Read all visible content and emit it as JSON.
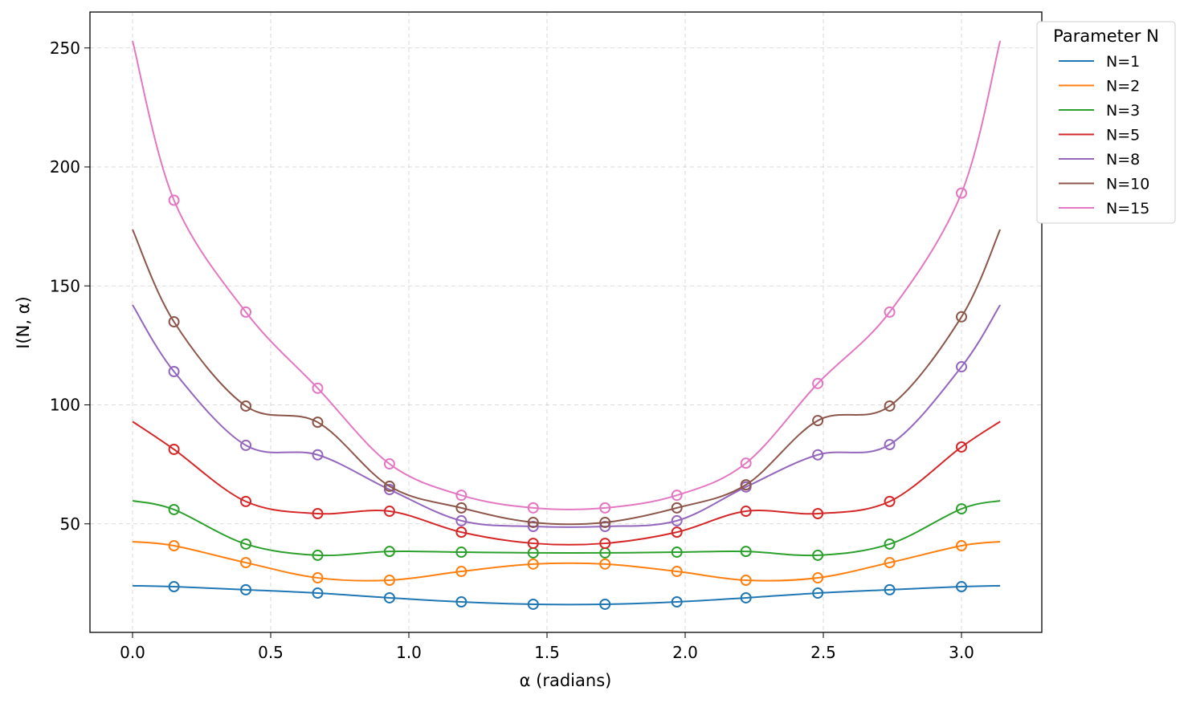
{
  "chart_data": {
    "type": "line",
    "title": "",
    "xlabel": "α (radians)",
    "ylabel": "I(N, α)",
    "xlim": [
      -0.157,
      3.299
    ],
    "ylim": [
      5,
      266
    ],
    "xticks": [
      0.0,
      0.5,
      1.0,
      1.5,
      2.0,
      2.5,
      3.0
    ],
    "xtick_labels": [
      "0.0",
      "0.5",
      "1.0",
      "1.5",
      "2.0",
      "2.5",
      "3.0"
    ],
    "yticks": [
      50,
      100,
      150,
      200,
      250
    ],
    "ytick_labels": [
      "50",
      "100",
      "150",
      "200",
      "250"
    ],
    "grid": true,
    "legend": {
      "title": "Parameter N",
      "placement": "outside-top-right"
    },
    "x": [
      0.0,
      0.15,
      0.41,
      0.67,
      0.93,
      1.19,
      1.45,
      1.71,
      1.97,
      2.22,
      2.48,
      2.74,
      3.0,
      3.14
    ],
    "marker_style": "hollow circle at interior points",
    "series": [
      {
        "name": "N=1",
        "color": "#1f77b4",
        "values": [
          24,
          23.6,
          22.3,
          20.9,
          18.9,
          17.2,
          16.2,
          16.2,
          17.2,
          18.9,
          20.9,
          22.3,
          23.6,
          24
        ]
      },
      {
        "name": "N=2",
        "color": "#ff7f0e",
        "values": [
          42.5,
          40.8,
          33.7,
          27.3,
          26.3,
          30.0,
          33.1,
          33.1,
          30.0,
          26.3,
          27.3,
          33.7,
          40.8,
          42.5
        ]
      },
      {
        "name": "N=3",
        "color": "#2ca02c",
        "values": [
          59.7,
          56.0,
          41.5,
          36.8,
          38.4,
          38.1,
          37.8,
          37.8,
          38.1,
          38.4,
          36.8,
          41.5,
          56.3,
          59.7
        ]
      },
      {
        "name": "N=5",
        "color": "#d62728",
        "values": [
          93,
          81.3,
          59.4,
          54.3,
          55.3,
          46.5,
          41.8,
          41.8,
          46.5,
          55.3,
          54.3,
          59.4,
          82.3,
          93
        ]
      },
      {
        "name": "N=8",
        "color": "#9467bd",
        "values": [
          142,
          114,
          83,
          79,
          64.4,
          51.3,
          48.9,
          48.9,
          51.3,
          65.5,
          79,
          83.3,
          116,
          142
        ]
      },
      {
        "name": "N=10",
        "color": "#8c564b",
        "values": [
          173.7,
          134.9,
          99.5,
          92.7,
          65.8,
          56.7,
          50.6,
          50.6,
          56.7,
          66.4,
          93.4,
          99.5,
          137,
          173.7
        ]
      },
      {
        "name": "N=15",
        "color": "#e377c2",
        "values": [
          253,
          186,
          139,
          107,
          75.2,
          62,
          56.7,
          56.7,
          62,
          75.5,
          109,
          139,
          189,
          253
        ]
      }
    ]
  }
}
